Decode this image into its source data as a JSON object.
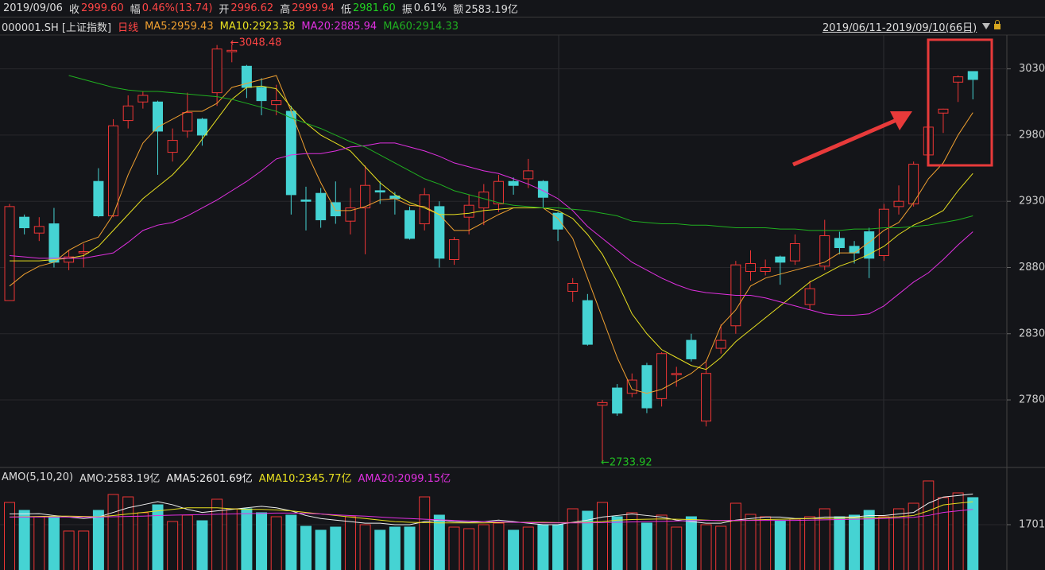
{
  "header": {
    "date": "2019/09/06",
    "items": [
      {
        "label": "收",
        "value": "2999.60",
        "color": "#ff4545"
      },
      {
        "label": "幅",
        "value": "0.46%(13.74)",
        "color": "#ff4545"
      },
      {
        "label": "开",
        "value": "2996.62",
        "color": "#ff4545"
      },
      {
        "label": "高",
        "value": "2999.94",
        "color": "#ff4545"
      },
      {
        "label": "低",
        "value": "2981.60",
        "color": "#22d022"
      },
      {
        "label": "振",
        "value": "0.61%",
        "color": "#dcdcdc"
      },
      {
        "label": "额",
        "value": "2583.19亿",
        "color": "#dcdcdc"
      }
    ],
    "symbol": "000001.SH [上证指数]",
    "period": "日线",
    "range": "2019/06/11-2019/09/10(66日)"
  },
  "chart_data": [
    {
      "type": "candlestick",
      "up_color": "#ee3535",
      "down_color": "#45d3d3",
      "open": [
        2855,
        2918,
        2906,
        2913,
        2884,
        2891,
        2945,
        2919,
        2991,
        3005,
        3005,
        2967,
        2983,
        2992,
        3012,
        3043,
        3032,
        3016,
        3003,
        2998,
        2931,
        2936,
        2929,
        2915,
        2925,
        2938,
        2934,
        2923,
        2913,
        2926,
        2886,
        2918,
        2925,
        2928,
        2945,
        2947,
        2945,
        2921,
        2862,
        2855,
        2776,
        2789,
        2785,
        2806,
        2781,
        2799,
        2825,
        2764,
        2819,
        2836,
        2877,
        2877,
        2888,
        2885,
        2852,
        2881,
        2902,
        2896,
        2907,
        2889,
        2926,
        2928,
        2965,
        2996.62,
        3020,
        3028
      ],
      "high": [
        2928,
        2920,
        2918,
        2925,
        2893,
        2898,
        2955,
        2992,
        3010,
        3013,
        3006,
        2985,
        3012,
        2993,
        3048,
        3048.48,
        3033,
        3023,
        3018,
        3002,
        2941,
        2940,
        2945,
        2940,
        2957,
        2945,
        2937,
        2926,
        2940,
        2930,
        2903,
        2935,
        2943,
        2950,
        2948,
        2962,
        2946,
        2922,
        2872,
        2860,
        2780,
        2792,
        2800,
        2808,
        2816,
        2805,
        2830,
        2810,
        2837,
        2885,
        2893,
        2886,
        2889,
        2905,
        2870,
        2916,
        2907,
        2900,
        2910,
        2928,
        2942,
        2960,
        2989,
        2999.94,
        3025,
        3028
      ],
      "low": [
        2855,
        2905,
        2900,
        2880,
        2878,
        2880,
        2918,
        2918,
        2985,
        3000,
        2950,
        2960,
        2978,
        2972,
        3002,
        3035,
        3008,
        2995,
        2995,
        2920,
        2908,
        2910,
        2913,
        2905,
        2890,
        2928,
        2920,
        2901,
        2908,
        2880,
        2882,
        2905,
        2912,
        2922,
        2935,
        2940,
        2925,
        2900,
        2854,
        2821,
        2733.92,
        2768,
        2782,
        2770,
        2775,
        2790,
        2809,
        2760,
        2815,
        2830,
        2870,
        2874,
        2867,
        2882,
        2848,
        2878,
        2890,
        2883,
        2872,
        2885,
        2920,
        2926,
        2962,
        2981.6,
        3005,
        3007
      ],
      "close": [
        2926,
        2910,
        2911,
        2884,
        2888,
        2892,
        2919,
        2987,
        3002,
        3010,
        2983,
        2976,
        2997,
        2980,
        3045,
        3044,
        3016,
        3006,
        3006,
        2935,
        2930,
        2916,
        2919,
        2925,
        2942,
        2937,
        2932,
        2902,
        2935,
        2887,
        2901,
        2927,
        2937,
        2945,
        2942,
        2953,
        2933,
        2909,
        2868,
        2822,
        2778,
        2770,
        2795,
        2774,
        2815,
        2800,
        2811,
        2800,
        2825,
        2882,
        2883,
        2880,
        2884,
        2898,
        2864,
        2904,
        2895,
        2891,
        2887,
        2924,
        2930,
        2958,
        2986,
        2999.6,
        3024,
        3022
      ],
      "series": [
        {
          "name": "MA5:2959.43",
          "color": "#f0a030",
          "values": [
            2866,
            2875,
            2881,
            2884,
            2893,
            2899,
            2903,
            2920,
            2950,
            2974,
            2986,
            2992,
            2998,
            2998,
            3004,
            3016,
            3019,
            3022,
            3025,
            2998,
            2968,
            2944,
            2923,
            2923,
            2926,
            2931,
            2932,
            2927,
            2926,
            2920,
            2908,
            2908,
            2914,
            2920,
            2925,
            2925,
            2925,
            2917,
            2902,
            2872,
            2842,
            2812,
            2788,
            2785,
            2788,
            2794,
            2800,
            2809,
            2836,
            2848,
            2866,
            2872,
            2875,
            2878,
            2881,
            2884,
            2891,
            2891,
            2899,
            2908,
            2914,
            2929,
            2947,
            2959,
            2980,
            2997
          ]
        },
        {
          "name": "MA10:2923.38",
          "color": "#e8e020",
          "values": [
            2885,
            2885,
            2885,
            2886,
            2887,
            2889,
            2896,
            2908,
            2920,
            2932,
            2941,
            2950,
            2962,
            2977,
            2992,
            3007,
            3016,
            3017,
            3015,
            3001,
            2989,
            2980,
            2974,
            2968,
            2956,
            2944,
            2935,
            2929,
            2925,
            2920,
            2920,
            2921,
            2923,
            2924,
            2925,
            2925,
            2925,
            2923,
            2917,
            2905,
            2890,
            2869,
            2845,
            2830,
            2818,
            2812,
            2806,
            2803,
            2812,
            2824,
            2833,
            2842,
            2851,
            2860,
            2869,
            2875,
            2881,
            2885,
            2890,
            2896,
            2905,
            2912,
            2917,
            2923,
            2938,
            2951
          ]
        },
        {
          "name": "MA20:2885.94",
          "color": "#e030e0",
          "values": [
            2889,
            2888,
            2887,
            2887,
            2887,
            2887,
            2889,
            2891,
            2899,
            2908,
            2912,
            2914,
            2919,
            2925,
            2931,
            2938,
            2945,
            2953,
            2962,
            2965,
            2966,
            2966,
            2968,
            2971,
            2972,
            2974,
            2974,
            2971,
            2968,
            2964,
            2959,
            2956,
            2953,
            2951,
            2947,
            2943,
            2938,
            2932,
            2923,
            2911,
            2902,
            2893,
            2884,
            2878,
            2872,
            2867,
            2863,
            2861,
            2860,
            2859,
            2859,
            2857,
            2854,
            2851,
            2848,
            2845,
            2844,
            2844,
            2845,
            2851,
            2860,
            2869,
            2876,
            2886,
            2897,
            2907
          ]
        },
        {
          "name": "MA60:2914.33",
          "color": "#20b020",
          "values": [
            null,
            null,
            null,
            null,
            3025,
            3022,
            3019,
            3016,
            3014,
            3013,
            3013,
            3012,
            3011,
            3010,
            3009,
            3007,
            3004,
            3001,
            2998,
            2993,
            2989,
            2985,
            2980,
            2975,
            2971,
            2965,
            2959,
            2953,
            2947,
            2943,
            2938,
            2935,
            2932,
            2929,
            2927,
            2926,
            2925,
            2925,
            2924,
            2923,
            2921,
            2919,
            2915,
            2914,
            2913,
            2913,
            2912,
            2912,
            2911,
            2910,
            2910,
            2910,
            2909,
            2909,
            2908,
            2908,
            2908,
            2909,
            2909,
            2910,
            2910,
            2911,
            2912,
            2914,
            2916,
            2919
          ]
        }
      ],
      "annotations": [
        "←3048.48",
        "←2733.92"
      ],
      "ylim": [
        2729,
        3055
      ],
      "yticks": [
        3030,
        2980,
        2930,
        2880,
        2830,
        2780
      ],
      "grid": true
    },
    {
      "type": "bar",
      "legend": "AMO(5,10,20)",
      "amo_label": "AMO:2583.19亿",
      "values": [
        2426,
        2167,
        1960,
        1960,
        1494,
        1494,
        2167,
        2685,
        2607,
        2090,
        2348,
        1805,
        2012,
        1830,
        2530,
        2219,
        2219,
        2090,
        1960,
        2012,
        1649,
        1520,
        1623,
        1960,
        1701,
        1520,
        1623,
        1623,
        2607,
        2012,
        1623,
        1571,
        1701,
        1753,
        1520,
        1623,
        1701,
        1701,
        2219,
        2141,
        2426,
        1960,
        2090,
        1753,
        2012,
        1623,
        1960,
        1701,
        1649,
        2400,
        2038,
        1960,
        1830,
        1882,
        1960,
        2219,
        1960,
        2012,
        2167,
        1960,
        2219,
        2400,
        3126,
        2583.19,
        2737,
        2583
      ],
      "series": [
        {
          "name": "AMA5:2601.69亿",
          "color": "#f0f0f0",
          "values": [
            2050,
            2050,
            2060,
            2000,
            1950,
            1900,
            1950,
            2100,
            2250,
            2350,
            2450,
            2350,
            2200,
            2100,
            2150,
            2200,
            2250,
            2300,
            2250,
            2150,
            2000,
            1900,
            1850,
            1800,
            1750,
            1750,
            1700,
            1700,
            1800,
            1850,
            1800,
            1780,
            1800,
            1850,
            1800,
            1750,
            1700,
            1700,
            1780,
            1850,
            1950,
            2000,
            2050,
            2000,
            1950,
            1850,
            1800,
            1750,
            1750,
            1850,
            1900,
            1950,
            1950,
            1900,
            1900,
            1950,
            1950,
            1950,
            2000,
            2000,
            2050,
            2100,
            2400,
            2601.69,
            2650,
            2700
          ]
        },
        {
          "name": "AMA10:2345.77亿",
          "color": "#e8e020",
          "values": [
            1950,
            1960,
            1970,
            1980,
            1980,
            1970,
            1960,
            2000,
            2050,
            2100,
            2150,
            2200,
            2250,
            2250,
            2250,
            2220,
            2200,
            2200,
            2180,
            2150,
            2100,
            2050,
            2000,
            1950,
            1900,
            1850,
            1800,
            1780,
            1770,
            1760,
            1760,
            1760,
            1760,
            1770,
            1780,
            1780,
            1780,
            1770,
            1770,
            1780,
            1800,
            1850,
            1870,
            1880,
            1890,
            1880,
            1870,
            1850,
            1830,
            1830,
            1850,
            1870,
            1880,
            1890,
            1900,
            1900,
            1910,
            1920,
            1930,
            1940,
            1960,
            2000,
            2150,
            2345.77,
            2400,
            2450
          ]
        },
        {
          "name": "AMA20:2099.15亿",
          "color": "#e030e0",
          "values": [
            1950,
            1950,
            1950,
            1950,
            1950,
            1950,
            1950,
            1960,
            1970,
            1980,
            2000,
            2010,
            2020,
            2030,
            2040,
            2050,
            2060,
            2070,
            2080,
            2080,
            2070,
            2050,
            2020,
            2000,
            1980,
            1950,
            1920,
            1900,
            1880,
            1860,
            1840,
            1820,
            1800,
            1790,
            1780,
            1770,
            1760,
            1760,
            1760,
            1760,
            1770,
            1780,
            1790,
            1800,
            1810,
            1820,
            1830,
            1840,
            1840,
            1840,
            1840,
            1840,
            1840,
            1840,
            1850,
            1860,
            1870,
            1880,
            1890,
            1900,
            1920,
            1940,
            2000,
            2099.15,
            2150,
            2200
          ]
        }
      ],
      "ylim": [
        224,
        3255
      ],
      "yticks": [
        {
          "value": 1701,
          "label": "1701亿"
        }
      ]
    }
  ]
}
